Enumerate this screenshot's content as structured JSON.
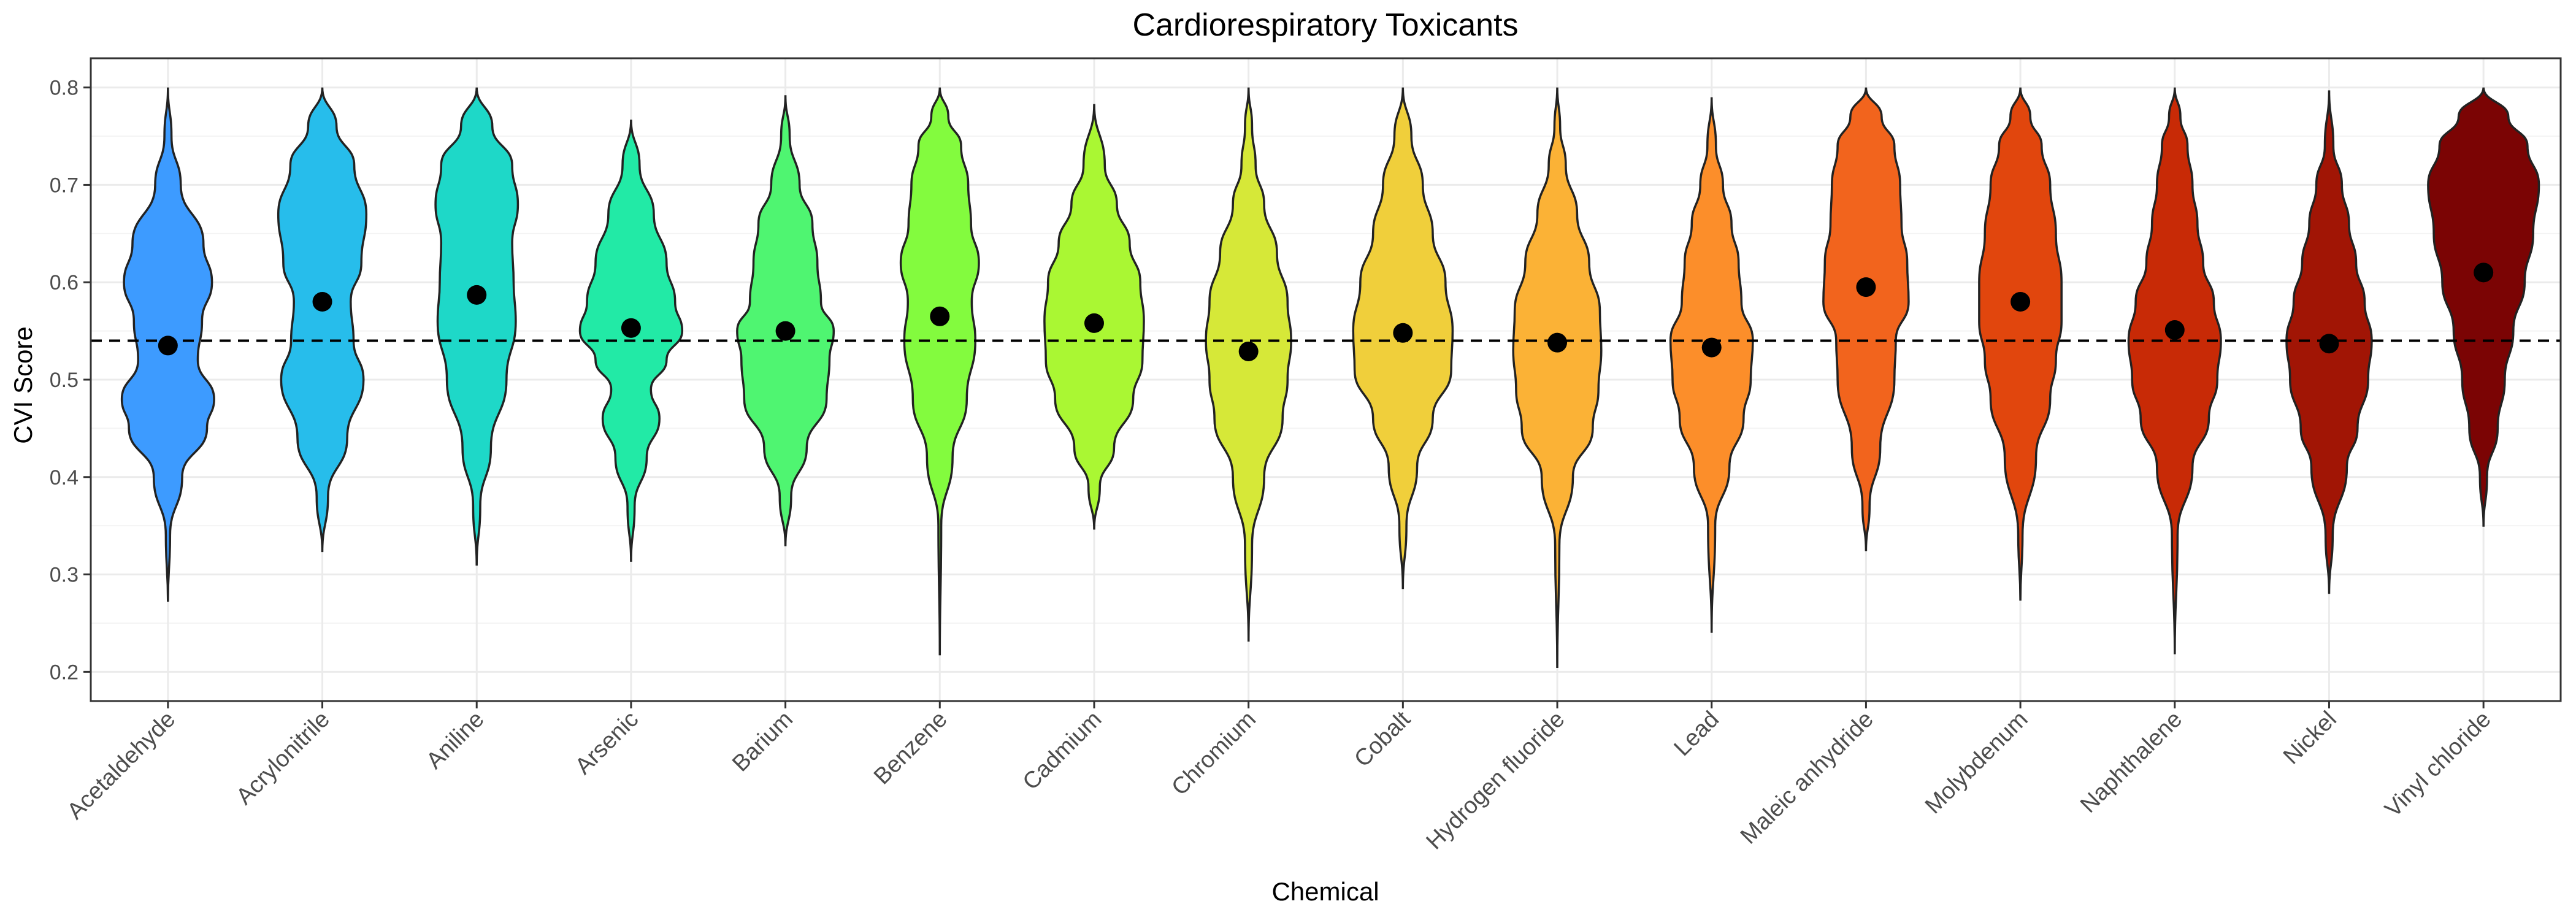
{
  "chart_data": {
    "type": "violin",
    "title": "Cardiorespiratory Toxicants",
    "xlabel": "Chemical",
    "ylabel": "CVI Score",
    "ylim": [
      0.17,
      0.83
    ],
    "yticks": [
      0.2,
      0.3,
      0.4,
      0.5,
      0.6,
      0.7,
      0.8
    ],
    "ytick_labels": [
      "0.2",
      "0.3",
      "0.4",
      "0.5",
      "0.6",
      "0.7",
      "0.8"
    ],
    "reference_line": 0.54,
    "grid": true,
    "legend": "none",
    "series": [
      {
        "category": "Acetaldehyde",
        "color": "#3d9bff",
        "min": 0.272,
        "max": 0.8,
        "mean": 0.535,
        "density": [
          [
            0.272,
            0.0
          ],
          [
            0.34,
            0.03
          ],
          [
            0.4,
            0.2
          ],
          [
            0.45,
            0.55
          ],
          [
            0.48,
            0.65
          ],
          [
            0.52,
            0.42
          ],
          [
            0.56,
            0.48
          ],
          [
            0.6,
            0.62
          ],
          [
            0.64,
            0.5
          ],
          [
            0.7,
            0.18
          ],
          [
            0.75,
            0.05
          ],
          [
            0.8,
            0.0
          ]
        ]
      },
      {
        "category": "Acrylonitrile",
        "color": "#27bdeb",
        "min": 0.323,
        "max": 0.8,
        "mean": 0.58,
        "density": [
          [
            0.323,
            0.0
          ],
          [
            0.38,
            0.08
          ],
          [
            0.44,
            0.35
          ],
          [
            0.5,
            0.58
          ],
          [
            0.54,
            0.44
          ],
          [
            0.58,
            0.4
          ],
          [
            0.62,
            0.55
          ],
          [
            0.67,
            0.62
          ],
          [
            0.72,
            0.45
          ],
          [
            0.76,
            0.2
          ],
          [
            0.8,
            0.0
          ]
        ]
      },
      {
        "category": "Aniline",
        "color": "#1ed8c8",
        "min": 0.309,
        "max": 0.8,
        "mean": 0.587,
        "density": [
          [
            0.309,
            0.0
          ],
          [
            0.37,
            0.05
          ],
          [
            0.43,
            0.2
          ],
          [
            0.5,
            0.42
          ],
          [
            0.56,
            0.55
          ],
          [
            0.6,
            0.52
          ],
          [
            0.64,
            0.5
          ],
          [
            0.68,
            0.58
          ],
          [
            0.72,
            0.5
          ],
          [
            0.76,
            0.22
          ],
          [
            0.8,
            0.0
          ]
        ]
      },
      {
        "category": "Arsenic",
        "color": "#22eaa6",
        "min": 0.313,
        "max": 0.767,
        "mean": 0.553,
        "density": [
          [
            0.313,
            0.0
          ],
          [
            0.37,
            0.05
          ],
          [
            0.42,
            0.22
          ],
          [
            0.46,
            0.4
          ],
          [
            0.49,
            0.28
          ],
          [
            0.52,
            0.5
          ],
          [
            0.55,
            0.72
          ],
          [
            0.58,
            0.62
          ],
          [
            0.62,
            0.5
          ],
          [
            0.67,
            0.32
          ],
          [
            0.72,
            0.12
          ],
          [
            0.767,
            0.0
          ]
        ]
      },
      {
        "category": "Barium",
        "color": "#4ff571",
        "min": 0.329,
        "max": 0.792,
        "mean": 0.55,
        "density": [
          [
            0.329,
            0.0
          ],
          [
            0.38,
            0.08
          ],
          [
            0.43,
            0.3
          ],
          [
            0.48,
            0.58
          ],
          [
            0.52,
            0.62
          ],
          [
            0.55,
            0.68
          ],
          [
            0.58,
            0.5
          ],
          [
            0.62,
            0.45
          ],
          [
            0.66,
            0.38
          ],
          [
            0.7,
            0.2
          ],
          [
            0.75,
            0.06
          ],
          [
            0.792,
            0.0
          ]
        ]
      },
      {
        "category": "Benzene",
        "color": "#83fb3e",
        "min": 0.217,
        "max": 0.8,
        "mean": 0.565,
        "density": [
          [
            0.217,
            0.0
          ],
          [
            0.35,
            0.02
          ],
          [
            0.42,
            0.18
          ],
          [
            0.48,
            0.38
          ],
          [
            0.54,
            0.5
          ],
          [
            0.58,
            0.45
          ],
          [
            0.62,
            0.55
          ],
          [
            0.66,
            0.44
          ],
          [
            0.7,
            0.4
          ],
          [
            0.74,
            0.3
          ],
          [
            0.77,
            0.12
          ],
          [
            0.8,
            0.0
          ]
        ]
      },
      {
        "category": "Cadmium",
        "color": "#aaf733",
        "min": 0.346,
        "max": 0.783,
        "mean": 0.558,
        "density": [
          [
            0.346,
            0.0
          ],
          [
            0.39,
            0.08
          ],
          [
            0.43,
            0.28
          ],
          [
            0.48,
            0.55
          ],
          [
            0.52,
            0.68
          ],
          [
            0.56,
            0.7
          ],
          [
            0.6,
            0.65
          ],
          [
            0.64,
            0.5
          ],
          [
            0.68,
            0.32
          ],
          [
            0.72,
            0.15
          ],
          [
            0.783,
            0.0
          ]
        ]
      },
      {
        "category": "Chromium",
        "color": "#d6e838",
        "min": 0.231,
        "max": 0.8,
        "mean": 0.529,
        "density": [
          [
            0.231,
            0.0
          ],
          [
            0.33,
            0.05
          ],
          [
            0.4,
            0.22
          ],
          [
            0.46,
            0.48
          ],
          [
            0.5,
            0.55
          ],
          [
            0.54,
            0.6
          ],
          [
            0.58,
            0.55
          ],
          [
            0.63,
            0.4
          ],
          [
            0.68,
            0.22
          ],
          [
            0.72,
            0.1
          ],
          [
            0.76,
            0.05
          ],
          [
            0.8,
            0.0
          ]
        ]
      },
      {
        "category": "Cobalt",
        "color": "#f0cf3b",
        "min": 0.285,
        "max": 0.8,
        "mean": 0.548,
        "density": [
          [
            0.285,
            0.0
          ],
          [
            0.35,
            0.05
          ],
          [
            0.41,
            0.2
          ],
          [
            0.46,
            0.42
          ],
          [
            0.51,
            0.68
          ],
          [
            0.55,
            0.7
          ],
          [
            0.6,
            0.6
          ],
          [
            0.65,
            0.42
          ],
          [
            0.7,
            0.28
          ],
          [
            0.75,
            0.12
          ],
          [
            0.8,
            0.0
          ]
        ]
      },
      {
        "category": "Hydrogen fluoride",
        "color": "#fbb236",
        "min": 0.204,
        "max": 0.8,
        "mean": 0.538,
        "density": [
          [
            0.204,
            0.0
          ],
          [
            0.33,
            0.03
          ],
          [
            0.4,
            0.22
          ],
          [
            0.45,
            0.5
          ],
          [
            0.49,
            0.58
          ],
          [
            0.53,
            0.62
          ],
          [
            0.57,
            0.6
          ],
          [
            0.62,
            0.45
          ],
          [
            0.67,
            0.28
          ],
          [
            0.72,
            0.12
          ],
          [
            0.76,
            0.04
          ],
          [
            0.8,
            0.0
          ]
        ]
      },
      {
        "category": "Lead",
        "color": "#fc8e2a",
        "min": 0.24,
        "max": 0.79,
        "mean": 0.533,
        "density": [
          [
            0.24,
            0.0
          ],
          [
            0.35,
            0.05
          ],
          [
            0.41,
            0.25
          ],
          [
            0.46,
            0.45
          ],
          [
            0.5,
            0.55
          ],
          [
            0.54,
            0.58
          ],
          [
            0.58,
            0.42
          ],
          [
            0.62,
            0.38
          ],
          [
            0.66,
            0.28
          ],
          [
            0.7,
            0.16
          ],
          [
            0.74,
            0.06
          ],
          [
            0.79,
            0.0
          ]
        ]
      },
      {
        "category": "Maleic anhydride",
        "color": "#f2641d",
        "min": 0.324,
        "max": 0.8,
        "mean": 0.595,
        "density": [
          [
            0.324,
            0.0
          ],
          [
            0.37,
            0.05
          ],
          [
            0.43,
            0.2
          ],
          [
            0.5,
            0.4
          ],
          [
            0.54,
            0.42
          ],
          [
            0.58,
            0.6
          ],
          [
            0.62,
            0.58
          ],
          [
            0.66,
            0.5
          ],
          [
            0.7,
            0.48
          ],
          [
            0.74,
            0.4
          ],
          [
            0.77,
            0.22
          ],
          [
            0.8,
            0.0
          ]
        ]
      },
      {
        "category": "Molybdenum",
        "color": "#e1460d",
        "min": 0.273,
        "max": 0.8,
        "mean": 0.58,
        "density": [
          [
            0.273,
            0.0
          ],
          [
            0.34,
            0.03
          ],
          [
            0.42,
            0.22
          ],
          [
            0.48,
            0.42
          ],
          [
            0.52,
            0.5
          ],
          [
            0.56,
            0.58
          ],
          [
            0.6,
            0.58
          ],
          [
            0.65,
            0.5
          ],
          [
            0.7,
            0.42
          ],
          [
            0.74,
            0.3
          ],
          [
            0.77,
            0.14
          ],
          [
            0.8,
            0.0
          ]
        ]
      },
      {
        "category": "Naphthalene",
        "color": "#c82a06",
        "min": 0.218,
        "max": 0.8,
        "mean": 0.551,
        "density": [
          [
            0.218,
            0.0
          ],
          [
            0.34,
            0.04
          ],
          [
            0.41,
            0.25
          ],
          [
            0.46,
            0.48
          ],
          [
            0.5,
            0.6
          ],
          [
            0.54,
            0.65
          ],
          [
            0.58,
            0.55
          ],
          [
            0.62,
            0.4
          ],
          [
            0.66,
            0.32
          ],
          [
            0.7,
            0.25
          ],
          [
            0.74,
            0.18
          ],
          [
            0.77,
            0.08
          ],
          [
            0.8,
            0.0
          ]
        ]
      },
      {
        "category": "Nickel",
        "color": "#a11505",
        "min": 0.28,
        "max": 0.797,
        "mean": 0.537,
        "density": [
          [
            0.28,
            0.0
          ],
          [
            0.34,
            0.05
          ],
          [
            0.41,
            0.25
          ],
          [
            0.45,
            0.4
          ],
          [
            0.5,
            0.55
          ],
          [
            0.54,
            0.6
          ],
          [
            0.58,
            0.5
          ],
          [
            0.62,
            0.38
          ],
          [
            0.66,
            0.28
          ],
          [
            0.7,
            0.18
          ],
          [
            0.74,
            0.06
          ],
          [
            0.797,
            0.0
          ]
        ]
      },
      {
        "category": "Vinyl chloride",
        "color": "#7b0404",
        "min": 0.349,
        "max": 0.8,
        "mean": 0.61,
        "density": [
          [
            0.349,
            0.0
          ],
          [
            0.4,
            0.05
          ],
          [
            0.45,
            0.2
          ],
          [
            0.5,
            0.3
          ],
          [
            0.55,
            0.42
          ],
          [
            0.6,
            0.58
          ],
          [
            0.65,
            0.7
          ],
          [
            0.7,
            0.78
          ],
          [
            0.74,
            0.62
          ],
          [
            0.77,
            0.35
          ],
          [
            0.8,
            0.0
          ]
        ]
      }
    ]
  }
}
